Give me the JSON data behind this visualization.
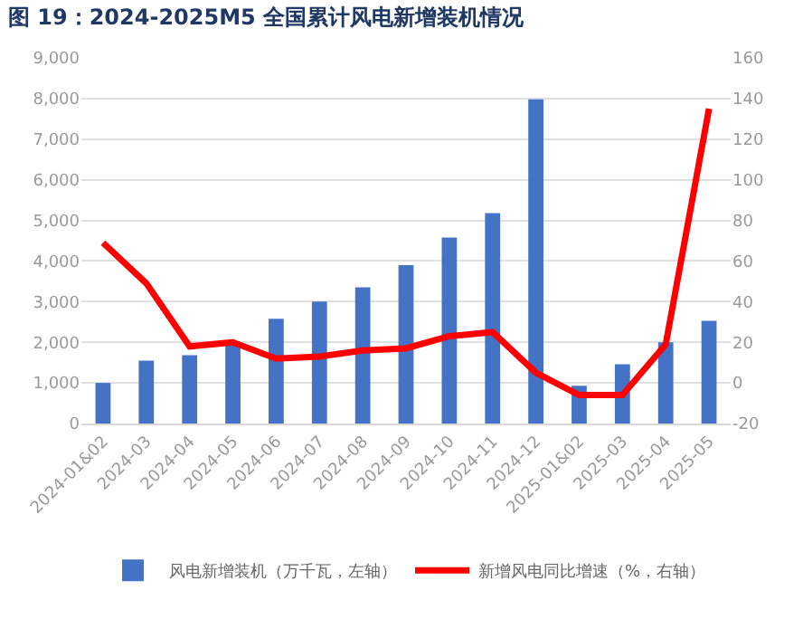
{
  "chart_data": {
    "type": "bar",
    "title": "图 19：2024-2025M5 全国累计风电新增装机情况",
    "categories": [
      "2024-01&02",
      "2024-03",
      "2024-04",
      "2024-05",
      "2024-06",
      "2024-07",
      "2024-08",
      "2024-09",
      "2024-10",
      "2024-11",
      "2024-12",
      "2025-01&02",
      "2025-03",
      "2025-04",
      "2025-05"
    ],
    "series": [
      {
        "name": "风电新增装机（万千瓦，左轴）",
        "color": "#4472c4",
        "values": [
          1000,
          1550,
          1680,
          2000,
          2580,
          3000,
          3350,
          3900,
          4580,
          5180,
          7980,
          930,
          1460,
          2000,
          2530
        ]
      },
      {
        "name": "新增风电同比增速（%，右轴）",
        "type": "line",
        "axis": "y2",
        "color": "#ff0000",
        "values": [
          69,
          49,
          18,
          20,
          12,
          13,
          16,
          17,
          23,
          25,
          5,
          -6,
          -6,
          19,
          135
        ]
      }
    ],
    "ylim": [
      0,
      9000
    ],
    "yticks": [
      {
        "value": 0,
        "label": "0"
      },
      {
        "value": 1000,
        "label": "1,000"
      },
      {
        "value": 2000,
        "label": "2,000"
      },
      {
        "value": 3000,
        "label": "3,000"
      },
      {
        "value": 4000,
        "label": "4,000"
      },
      {
        "value": 5000,
        "label": "5,000"
      },
      {
        "value": 6000,
        "label": "6,000"
      },
      {
        "value": 7000,
        "label": "7,000"
      },
      {
        "value": 8000,
        "label": "8,000"
      },
      {
        "value": 9000,
        "label": "9,000"
      }
    ],
    "y2lim": [
      -20,
      160
    ],
    "y2ticks": [
      -20,
      0,
      20,
      40,
      60,
      80,
      100,
      120,
      140,
      160
    ],
    "grid": "y",
    "legend": "bottom",
    "marker": "none",
    "line_style": "solid"
  }
}
